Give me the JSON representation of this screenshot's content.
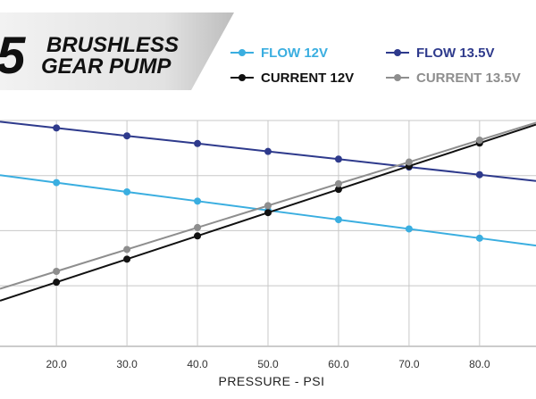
{
  "header": {
    "title_digit": "5",
    "title_line1": "BRUSHLESS",
    "title_line2": "GEAR PUMP"
  },
  "chart_data": {
    "type": "line",
    "title": "",
    "xlabel": "PRESSURE - PSI",
    "ylabel": "",
    "xlim": [
      12,
      88
    ],
    "ylim": [
      0,
      100
    ],
    "x_ticks": [
      20,
      30,
      40,
      50,
      60,
      70,
      80
    ],
    "x_tick_labels": [
      "20.0",
      "30.0",
      "40.0",
      "50.0",
      "60.0",
      "70.0",
      "80.0"
    ],
    "grid": true,
    "legend_position": "top-right",
    "series": [
      {
        "name": "FLOW 12V",
        "color": "#3aaee0",
        "x": [
          20,
          30,
          40,
          50,
          60,
          70,
          80
        ],
        "values": [
          72.5,
          68.4,
          64.3,
          60.2,
          56.1,
          52.0,
          47.9
        ]
      },
      {
        "name": "FLOW 13.5V",
        "color": "#2e3a8c",
        "x": [
          20,
          30,
          40,
          50,
          60,
          70,
          80
        ],
        "values": [
          96.7,
          93.2,
          89.8,
          86.3,
          82.9,
          79.4,
          76.0
        ]
      },
      {
        "name": "CURRENT 12V",
        "color": "#111111",
        "x": [
          20,
          30,
          40,
          50,
          60,
          70,
          80
        ],
        "values": [
          28.4,
          38.6,
          48.9,
          59.2,
          69.5,
          79.8,
          90.0
        ]
      },
      {
        "name": "CURRENT 13.5V",
        "color": "#8e8e8e",
        "x": [
          20,
          30,
          40,
          50,
          60,
          70,
          80
        ],
        "values": [
          33.2,
          42.9,
          52.6,
          62.3,
          72.0,
          81.6,
          91.3
        ]
      }
    ]
  }
}
